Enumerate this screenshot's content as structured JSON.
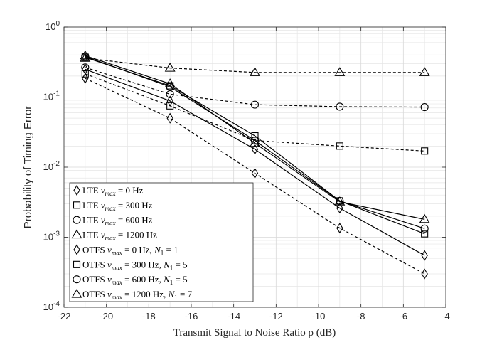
{
  "chart_data": {
    "type": "line",
    "xlabel": "Transmit Signal to Noise Ratio ρ (dB)",
    "ylabel": "Probability of Timing Error",
    "xlim": [
      -22,
      -4
    ],
    "ylim": [
      0.0001,
      1
    ],
    "yscale": "log",
    "grid": true,
    "xticks": [
      -22,
      -20,
      -18,
      -16,
      -14,
      -12,
      -10,
      -8,
      -6,
      -4
    ],
    "xtick_labels": [
      "-22",
      "-20",
      "-18",
      "-16",
      "-14",
      "-12",
      "-10",
      "-8",
      "-6",
      "-4"
    ],
    "ytick_labels": [
      {
        "base": "10",
        "exp": "0",
        "value": 1
      },
      {
        "base": "10",
        "exp": "-1",
        "value": 0.1
      },
      {
        "base": "10",
        "exp": "-2",
        "value": 0.01
      },
      {
        "base": "10",
        "exp": "-3",
        "value": 0.001
      },
      {
        "base": "10",
        "exp": "-4",
        "value": 0.0001
      }
    ],
    "legend_position": "bottom-left",
    "x": [
      -21,
      -17,
      -13,
      -9,
      -5
    ],
    "series": [
      {
        "name": "LTE ν_max = 0 Hz",
        "label": {
          "a": "LTE ",
          "b": "ν",
          "sub": "max",
          "c": " = 0 Hz",
          "n": ""
        },
        "marker": "diamond",
        "dash": true,
        "values": [
          0.185,
          0.05,
          0.0082,
          0.00135,
          0.0003
        ]
      },
      {
        "name": "LTE ν_max = 300 Hz",
        "label": {
          "a": "LTE ",
          "b": "ν",
          "sub": "max",
          "c": " = 300 Hz",
          "n": ""
        },
        "marker": "square",
        "dash": true,
        "values": [
          0.215,
          0.075,
          0.024,
          0.02,
          0.017
        ]
      },
      {
        "name": "LTE ν_max = 600 Hz",
        "label": {
          "a": "LTE ",
          "b": "ν",
          "sub": "max",
          "c": " = 600 Hz",
          "n": ""
        },
        "marker": "circle",
        "dash": true,
        "values": [
          0.265,
          0.11,
          0.078,
          0.073,
          0.072
        ]
      },
      {
        "name": "LTE ν_max = 1200 Hz",
        "label": {
          "a": "LTE ",
          "b": "ν",
          "sub": "max",
          "c": " = 1200 Hz",
          "n": ""
        },
        "marker": "triangle",
        "dash": true,
        "values": [
          0.36,
          0.26,
          0.225,
          0.225,
          0.225
        ]
      },
      {
        "name": "OTFS ν_max = 0 Hz, N_1 = 1",
        "label": {
          "a": "OTFS ",
          "b": "ν",
          "sub": "max",
          "c": " = 0 Hz, ",
          "n": "1"
        },
        "marker": "diamond",
        "dash": false,
        "values": [
          0.25,
          0.088,
          0.018,
          0.0026,
          0.00055
        ]
      },
      {
        "name": "OTFS ν_max = 300 Hz, N_1 = 5",
        "label": {
          "a": "OTFS ",
          "b": "ν",
          "sub": "max",
          "c": " = 300 Hz, ",
          "n": "5"
        },
        "marker": "square",
        "dash": false,
        "values": [
          0.37,
          0.145,
          0.028,
          0.0033,
          0.00112
        ]
      },
      {
        "name": "OTFS ν_max = 600 Hz, N_1 = 5",
        "label": {
          "a": "OTFS ",
          "b": "ν",
          "sub": "max",
          "c": " = 600 Hz, ",
          "n": "5"
        },
        "marker": "circle",
        "dash": false,
        "values": [
          0.38,
          0.14,
          0.024,
          0.0033,
          0.00133
        ]
      },
      {
        "name": "OTFS ν_max = 1200 Hz, N_1 = 7",
        "label": {
          "a": "OTFS ",
          "b": "ν",
          "sub": "max",
          "c": " = 1200 Hz, ",
          "n": "7"
        },
        "marker": "triangle",
        "dash": false,
        "values": [
          0.39,
          0.155,
          0.022,
          0.0032,
          0.0018
        ]
      }
    ]
  }
}
